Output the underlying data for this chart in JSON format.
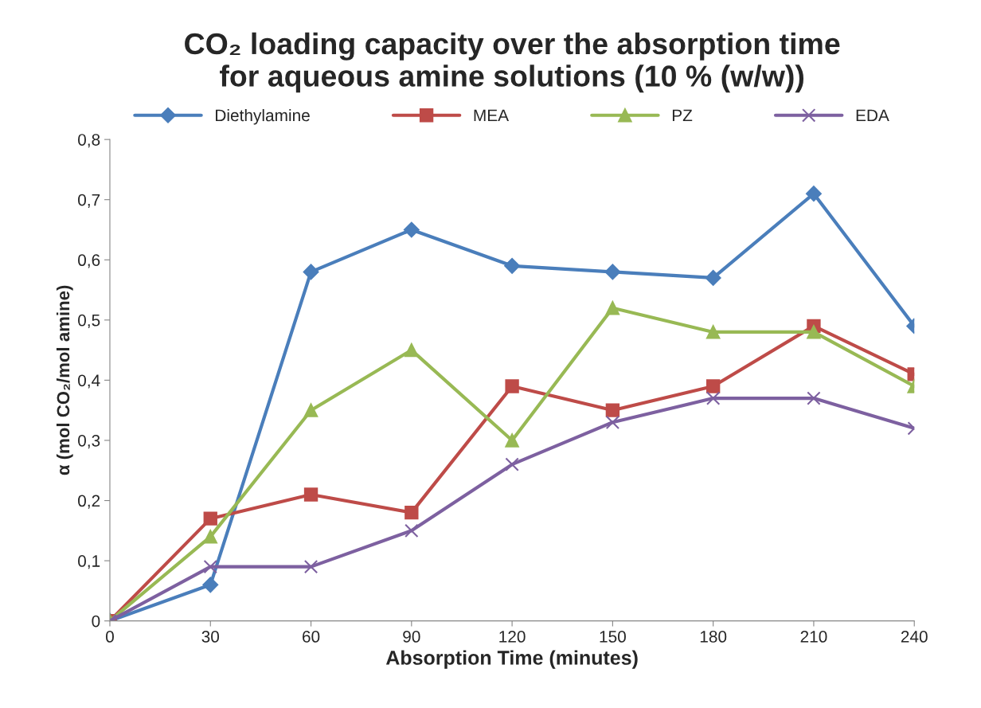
{
  "chart_data": {
    "type": "line",
    "title": "CO₂ loading capacity over the absorption time\nfor aqueous amine solutions (10 % (w/w))",
    "xlabel": "Absorption Time (minutes)",
    "ylabel": "α (mol CO₂/mol amine)",
    "x": [
      0,
      30,
      60,
      90,
      120,
      150,
      180,
      210,
      240
    ],
    "xlim": [
      0,
      240
    ],
    "xticks": [
      0,
      30,
      60,
      90,
      120,
      150,
      180,
      210,
      240
    ],
    "ylim": [
      0,
      0.8
    ],
    "yticks": [
      0,
      {
        "value": 0.1,
        "label": "0,1"
      },
      {
        "value": 0.2,
        "label": "0,2"
      },
      {
        "value": 0.3,
        "label": "0,3"
      },
      {
        "value": 0.4,
        "label": "0,4"
      },
      {
        "value": 0.5,
        "label": "0,5"
      },
      {
        "value": 0.6,
        "label": "0,6"
      },
      {
        "value": 0.7,
        "label": "0,7"
      },
      {
        "value": 0.8,
        "label": "0,8"
      }
    ],
    "grid": false,
    "legend": "top",
    "series": [
      {
        "name": "Diethylamine",
        "color": "#4a7ebb",
        "marker": "diamond",
        "values": [
          0,
          0.06,
          0.58,
          0.65,
          0.59,
          0.58,
          0.57,
          0.71,
          0.49
        ]
      },
      {
        "name": "MEA",
        "color": "#be4b48",
        "marker": "square",
        "values": [
          0,
          0.17,
          0.21,
          0.18,
          0.39,
          0.35,
          0.39,
          0.49,
          0.41
        ]
      },
      {
        "name": "PZ",
        "color": "#98b954",
        "marker": "triangle",
        "values": [
          0,
          0.14,
          0.35,
          0.45,
          0.3,
          0.52,
          0.48,
          0.48,
          0.39
        ]
      },
      {
        "name": "EDA",
        "color": "#7d60a0",
        "marker": "cross",
        "values": [
          0,
          0.09,
          0.09,
          0.15,
          0.26,
          0.33,
          0.37,
          0.37,
          0.32
        ]
      }
    ]
  }
}
